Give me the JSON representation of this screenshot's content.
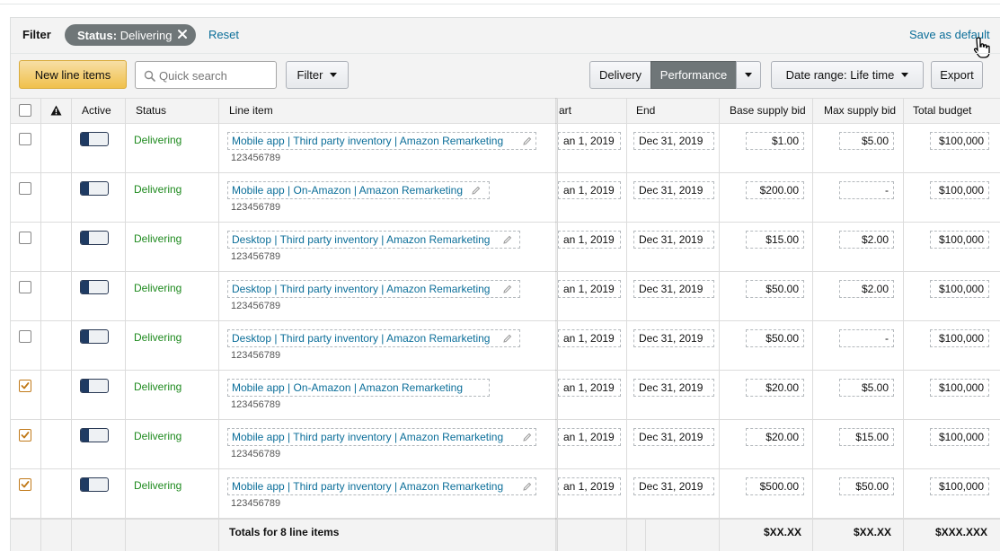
{
  "filter_bar": {
    "label": "Filter",
    "chip_key": "Status:",
    "chip_value": "Delivering",
    "reset_label": "Reset",
    "save_default_label": "Save as default"
  },
  "toolbar": {
    "new_line_items_label": "New line items",
    "search_placeholder": "Quick search",
    "filter_label": "Filter",
    "view_tabs": [
      "Delivery",
      "Performance"
    ],
    "active_view": "Performance",
    "date_range_label": "Date range:",
    "date_range_value": "Life time",
    "export_label": "Export"
  },
  "colors": {
    "accent_button": "#f0c14b",
    "delivering_status": "#1e8a1e",
    "link": "#0b6e99",
    "checkbox_checked": "#c17a1a"
  },
  "icons": {
    "alert_header": "warning-icon",
    "edit": "pencil-icon",
    "chip_remove": "close-icon",
    "search": "search-icon",
    "cursor": "hand-pointer-icon"
  },
  "table": {
    "columns": {
      "active": "Active",
      "status": "Status",
      "line_item": "Line item",
      "start": "art",
      "end": "End",
      "base_bid": "Base supply bid",
      "max_bid": "Max supply bid",
      "budget": "Total budget"
    },
    "rows": [
      {
        "checked": false,
        "status": "Delivering",
        "name": "Mobile app | Third party inventory | Amazon Remarketing",
        "id": "123456789",
        "start": "an 1, 2019",
        "end": "Dec 31, 2019",
        "base": "$1.00",
        "max": "$5.00",
        "budget": "$100,000"
      },
      {
        "checked": false,
        "status": "Delivering",
        "name": "Mobile app | On-Amazon | Amazon Remarketing",
        "id": "123456789",
        "start": "an 1, 2019",
        "end": "Dec 31, 2019",
        "base": "$200.00",
        "max": "-",
        "budget": "$100,000"
      },
      {
        "checked": false,
        "status": "Delivering",
        "name": "Desktop | Third party inventory | Amazon Remarketing",
        "id": "123456789",
        "start": "an 1, 2019",
        "end": "Dec 31, 2019",
        "base": "$15.00",
        "max": "$2.00",
        "budget": "$100,000"
      },
      {
        "checked": false,
        "status": "Delivering",
        "name": "Desktop | Third party inventory | Amazon Remarketing",
        "id": "123456789",
        "start": "an 1, 2019",
        "end": "Dec 31, 2019",
        "base": "$50.00",
        "max": "$2.00",
        "budget": "$100,000"
      },
      {
        "checked": false,
        "status": "Delivering",
        "name": "Desktop | Third party inventory | Amazon Remarketing",
        "id": "123456789",
        "start": "an 1, 2019",
        "end": "Dec 31, 2019",
        "base": "$50.00",
        "max": "-",
        "budget": "$100,000"
      },
      {
        "checked": true,
        "status": "Delivering",
        "name": "Mobile app | On-Amazon | Amazon Remarketing",
        "id": "123456789",
        "start": "an 1, 2019",
        "end": "Dec 31, 2019",
        "base": "$20.00",
        "max": "$5.00",
        "budget": "$100,000"
      },
      {
        "checked": true,
        "status": "Delivering",
        "name": "Mobile app | Third party inventory | Amazon Remarketing",
        "id": "123456789",
        "start": "an 1, 2019",
        "end": "Dec 31, 2019",
        "base": "$20.00",
        "max": "$15.00",
        "budget": "$100,000"
      },
      {
        "checked": true,
        "status": "Delivering",
        "name": "Mobile app | Third party inventory | Amazon Remarketing",
        "id": "123456789",
        "start": "an 1, 2019",
        "end": "Dec 31, 2019",
        "base": "$500.00",
        "max": "$50.00",
        "budget": "$100,000"
      }
    ],
    "totals": {
      "label": "Totals for 8 line items",
      "base": "$XX.XX",
      "max": "$XX.XX",
      "budget": "$XXX.XXX"
    }
  }
}
